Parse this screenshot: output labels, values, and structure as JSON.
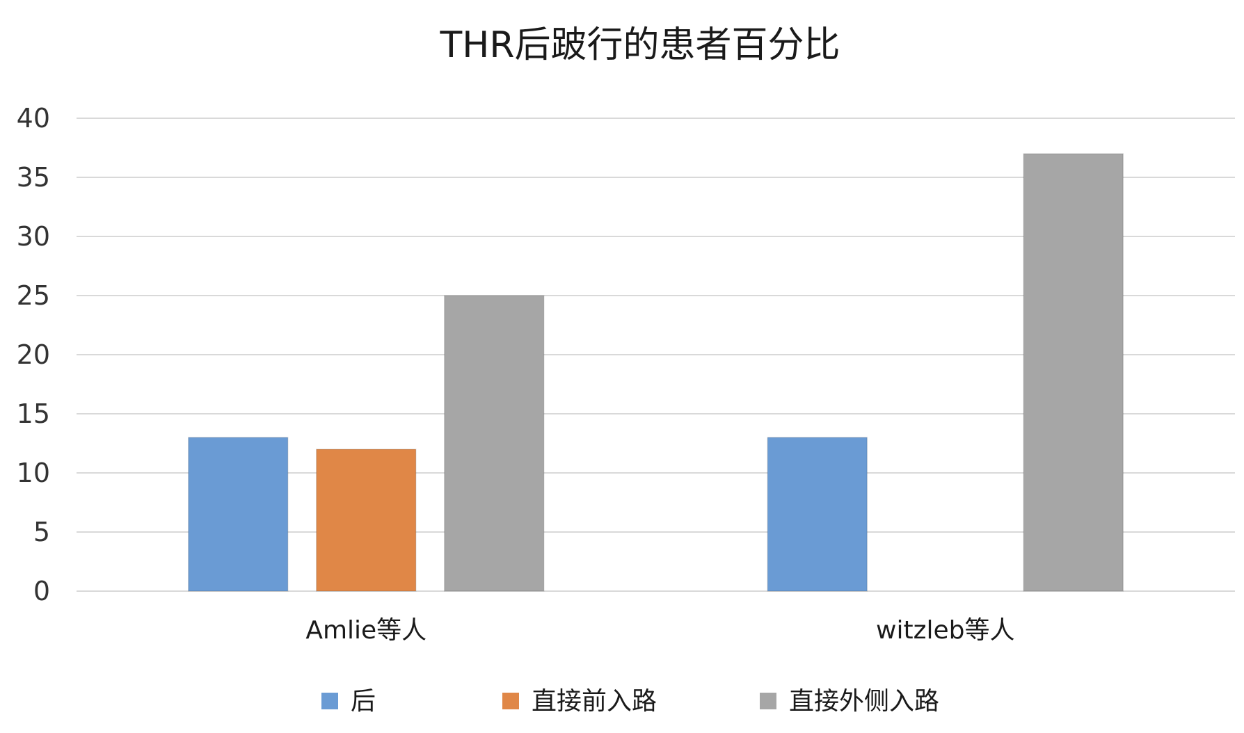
{
  "chart_data": {
    "type": "bar",
    "title": "THR后跛行的患者百分比",
    "xlabel": "",
    "ylabel": "",
    "categories": [
      "Amlie等人",
      "witzleb等人"
    ],
    "series": [
      {
        "name": "后",
        "color": "#6a9bd4",
        "values": [
          13,
          13
        ]
      },
      {
        "name": "直接前入路",
        "color": "#e08747",
        "values": [
          12,
          null
        ]
      },
      {
        "name": "直接外侧入路",
        "color": "#a6a6a6",
        "values": [
          25,
          37
        ]
      }
    ],
    "ylim": [
      0,
      40
    ],
    "yticks": [
      0,
      5,
      10,
      15,
      20,
      25,
      30,
      35,
      40
    ],
    "grid": true,
    "legend_position": "bottom"
  }
}
